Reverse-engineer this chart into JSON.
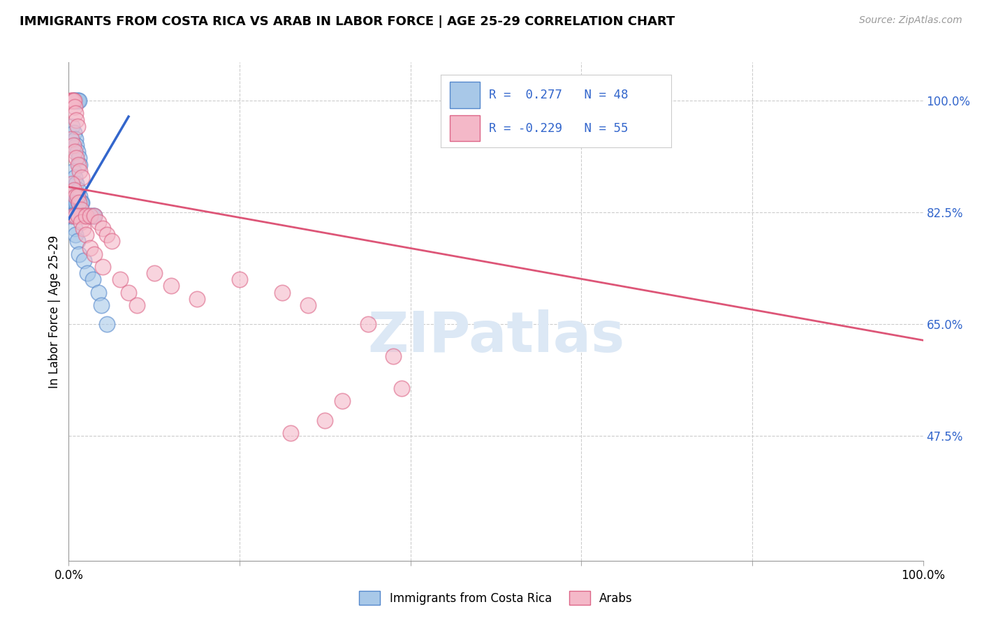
{
  "title": "IMMIGRANTS FROM COSTA RICA VS ARAB IN LABOR FORCE | AGE 25-29 CORRELATION CHART",
  "source": "Source: ZipAtlas.com",
  "ylabel": "In Labor Force | Age 25-29",
  "xlim": [
    0.0,
    1.0
  ],
  "ylim": [
    0.28,
    1.06
  ],
  "yticklabels_right": [
    "100.0%",
    "82.5%",
    "65.0%",
    "47.5%"
  ],
  "ytick_vals": [
    1.0,
    0.825,
    0.65,
    0.475
  ],
  "blue_color": "#a8c8e8",
  "blue_edge": "#5588cc",
  "pink_color": "#f4b8c8",
  "pink_edge": "#dd6688",
  "trendline_blue": "#3366cc",
  "trendline_pink": "#dd5577",
  "watermark_color": "#dce8f5",
  "legend_text_color": "#3366cc",
  "blue_x": [
    0.005,
    0.006,
    0.007,
    0.008,
    0.01,
    0.011,
    0.012,
    0.004,
    0.006,
    0.008,
    0.009,
    0.01,
    0.012,
    0.013,
    0.005,
    0.007,
    0.009,
    0.011,
    0.013,
    0.015,
    0.003,
    0.005,
    0.007,
    0.009,
    0.011,
    0.014,
    0.003,
    0.004,
    0.006,
    0.008,
    0.01,
    0.015,
    0.018,
    0.02,
    0.022,
    0.025,
    0.028,
    0.03,
    0.007,
    0.008,
    0.01,
    0.012,
    0.018,
    0.022,
    0.028,
    0.035,
    0.038,
    0.045
  ],
  "blue_y": [
    1.0,
    1.0,
    1.0,
    1.0,
    1.0,
    1.0,
    1.0,
    0.96,
    0.95,
    0.94,
    0.93,
    0.92,
    0.91,
    0.9,
    0.89,
    0.88,
    0.87,
    0.86,
    0.85,
    0.84,
    0.84,
    0.84,
    0.84,
    0.84,
    0.84,
    0.84,
    0.82,
    0.82,
    0.82,
    0.82,
    0.82,
    0.82,
    0.82,
    0.82,
    0.82,
    0.82,
    0.82,
    0.82,
    0.8,
    0.79,
    0.78,
    0.76,
    0.75,
    0.73,
    0.72,
    0.7,
    0.68,
    0.65
  ],
  "pink_x": [
    0.002,
    0.003,
    0.004,
    0.005,
    0.006,
    0.007,
    0.008,
    0.009,
    0.01,
    0.003,
    0.005,
    0.007,
    0.009,
    0.011,
    0.013,
    0.015,
    0.004,
    0.006,
    0.008,
    0.01,
    0.012,
    0.014,
    0.016,
    0.018,
    0.005,
    0.008,
    0.011,
    0.014,
    0.017,
    0.02,
    0.02,
    0.025,
    0.03,
    0.035,
    0.04,
    0.045,
    0.05,
    0.025,
    0.03,
    0.04,
    0.06,
    0.07,
    0.08,
    0.1,
    0.12,
    0.15,
    0.2,
    0.25,
    0.28,
    0.35,
    0.38,
    0.39,
    0.32,
    0.3,
    0.26
  ],
  "pink_y": [
    1.0,
    1.0,
    1.0,
    1.0,
    1.0,
    0.99,
    0.98,
    0.97,
    0.96,
    0.94,
    0.93,
    0.92,
    0.91,
    0.9,
    0.89,
    0.88,
    0.87,
    0.86,
    0.85,
    0.85,
    0.84,
    0.83,
    0.82,
    0.82,
    0.82,
    0.82,
    0.82,
    0.81,
    0.8,
    0.79,
    0.82,
    0.82,
    0.82,
    0.81,
    0.8,
    0.79,
    0.78,
    0.77,
    0.76,
    0.74,
    0.72,
    0.7,
    0.68,
    0.73,
    0.71,
    0.69,
    0.72,
    0.7,
    0.68,
    0.65,
    0.6,
    0.55,
    0.53,
    0.5,
    0.48
  ],
  "blue_trend_x": [
    0.0,
    0.07
  ],
  "blue_trend_y": [
    0.815,
    0.975
  ],
  "pink_trend_x": [
    0.0,
    1.0
  ],
  "pink_trend_y": [
    0.865,
    0.625
  ]
}
